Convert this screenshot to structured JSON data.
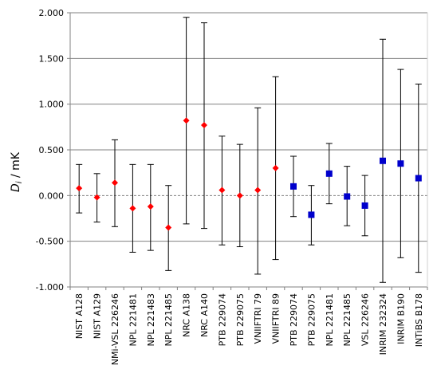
{
  "chart_data": {
    "type": "scatter",
    "ylabel": {
      "symbol": "D",
      "subscript": "i",
      "unit": " / mK"
    },
    "ylim": [
      -1.0,
      2.0
    ],
    "yticks": [
      "2.000",
      "1.500",
      "1.000",
      "0.500",
      "0.000",
      "-0.500",
      "-1.000"
    ],
    "ytick_values": [
      2.0,
      1.5,
      1.0,
      0.5,
      0.0,
      -0.5,
      -1.0
    ],
    "grid": "horizontal",
    "categories": [
      "NIST A128",
      "NIST A129",
      "NMi-VSL 226246",
      "NPL 221481",
      "NPL 221483",
      "NPL 221485",
      "NRC A138",
      "NRC A140",
      "PTB 229074",
      "PTB 229075",
      "VNIIFTRI 79",
      "VNIIFTRI 89",
      "PTB 229074",
      "PTB 229075",
      "NPL 221481",
      "NPL 221485",
      "VSL 226246",
      "INRIM 232324",
      "INRIM B190",
      "INTiBS B178"
    ],
    "series": [
      {
        "marker": "diamond",
        "color": "#ff0000",
        "points": [
          {
            "index": 0,
            "value": 0.08,
            "low": -0.19,
            "high": 0.34
          },
          {
            "index": 1,
            "value": -0.02,
            "low": -0.29,
            "high": 0.24
          },
          {
            "index": 2,
            "value": 0.14,
            "low": -0.34,
            "high": 0.61
          },
          {
            "index": 3,
            "value": -0.14,
            "low": -0.62,
            "high": 0.34
          },
          {
            "index": 4,
            "value": -0.12,
            "low": -0.6,
            "high": 0.34
          },
          {
            "index": 5,
            "value": -0.35,
            "low": -0.82,
            "high": 0.11
          },
          {
            "index": 6,
            "value": 0.82,
            "low": -0.31,
            "high": 1.95
          },
          {
            "index": 7,
            "value": 0.77,
            "low": -0.36,
            "high": 1.89
          },
          {
            "index": 8,
            "value": 0.06,
            "low": -0.54,
            "high": 0.65
          },
          {
            "index": 9,
            "value": 0.0,
            "low": -0.56,
            "high": 0.56
          },
          {
            "index": 10,
            "value": 0.06,
            "low": -0.86,
            "high": 0.96
          },
          {
            "index": 11,
            "value": 0.3,
            "low": -0.7,
            "high": 1.3
          }
        ]
      },
      {
        "marker": "square",
        "color": "#0000cc",
        "points": [
          {
            "index": 12,
            "value": 0.1,
            "low": -0.23,
            "high": 0.43
          },
          {
            "index": 13,
            "value": -0.21,
            "low": -0.54,
            "high": 0.11
          },
          {
            "index": 14,
            "value": 0.24,
            "low": -0.09,
            "high": 0.57
          },
          {
            "index": 15,
            "value": -0.01,
            "low": -0.33,
            "high": 0.32
          },
          {
            "index": 16,
            "value": -0.11,
            "low": -0.44,
            "high": 0.22
          },
          {
            "index": 17,
            "value": 0.38,
            "low": -0.95,
            "high": 1.71
          },
          {
            "index": 18,
            "value": 0.35,
            "low": -0.68,
            "high": 1.38
          },
          {
            "index": 19,
            "value": 0.19,
            "low": -0.84,
            "high": 1.22
          }
        ]
      }
    ]
  }
}
